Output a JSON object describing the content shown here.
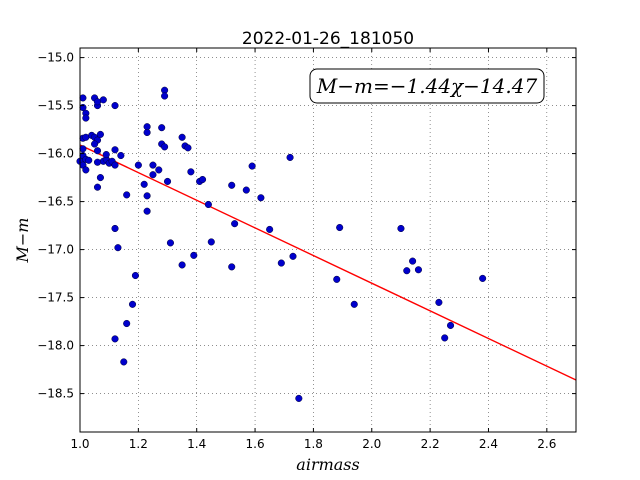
{
  "chart_data": {
    "type": "scatter",
    "title": "2022-01-26_181050",
    "xlabel": "airmass",
    "ylabel": "M−m",
    "xlim": [
      1.0,
      2.7
    ],
    "ylim": [
      -18.9,
      -14.9
    ],
    "xticks": [
      "1.0",
      "1.2",
      "1.4",
      "1.6",
      "1.8",
      "2.0",
      "2.2",
      "2.4",
      "2.6"
    ],
    "yticks": [
      "−15.0",
      "−15.5",
      "−16.0",
      "−16.5",
      "−17.0",
      "−17.5",
      "−18.0",
      "−18.5"
    ],
    "grid": true,
    "annotation": "M−m=−1.44χ−14.47",
    "fit": {
      "slope": -1.44,
      "intercept": -14.47,
      "color": "#ff0000"
    },
    "point_color": "#0000cc",
    "points": [
      [
        1.01,
        -15.42
      ],
      [
        1.01,
        -15.52
      ],
      [
        1.02,
        -15.58
      ],
      [
        1.02,
        -15.63
      ],
      [
        1.01,
        -15.84
      ],
      [
        1.02,
        -15.83
      ],
      [
        1.01,
        -15.95
      ],
      [
        1.01,
        -16.02
      ],
      [
        1.0,
        -16.08
      ],
      [
        1.01,
        -16.12
      ],
      [
        1.02,
        -16.17
      ],
      [
        1.02,
        -16.06
      ],
      [
        1.03,
        -16.07
      ],
      [
        1.04,
        -15.81
      ],
      [
        1.05,
        -15.42
      ],
      [
        1.06,
        -15.5
      ],
      [
        1.06,
        -15.46
      ],
      [
        1.08,
        -15.44
      ],
      [
        1.05,
        -15.83
      ],
      [
        1.06,
        -15.86
      ],
      [
        1.07,
        -15.8
      ],
      [
        1.05,
        -15.9
      ],
      [
        1.06,
        -15.97
      ],
      [
        1.08,
        -16.08
      ],
      [
        1.09,
        -16.06
      ],
      [
        1.09,
        -16.01
      ],
      [
        1.1,
        -16.1
      ],
      [
        1.11,
        -16.08
      ],
      [
        1.12,
        -16.12
      ],
      [
        1.12,
        -15.96
      ],
      [
        1.14,
        -16.02
      ],
      [
        1.12,
        -15.5
      ],
      [
        1.07,
        -16.25
      ],
      [
        1.06,
        -16.35
      ],
      [
        1.06,
        -16.09
      ],
      [
        1.16,
        -16.43
      ],
      [
        1.12,
        -16.78
      ],
      [
        1.13,
        -16.98
      ],
      [
        1.19,
        -17.27
      ],
      [
        1.18,
        -17.57
      ],
      [
        1.16,
        -17.77
      ],
      [
        1.12,
        -17.93
      ],
      [
        1.15,
        -18.17
      ],
      [
        1.2,
        -16.12
      ],
      [
        1.22,
        -16.32
      ],
      [
        1.23,
        -16.44
      ],
      [
        1.23,
        -16.6
      ],
      [
        1.23,
        -15.72
      ],
      [
        1.23,
        -15.78
      ],
      [
        1.25,
        -16.12
      ],
      [
        1.25,
        -16.22
      ],
      [
        1.27,
        -16.17
      ],
      [
        1.28,
        -15.73
      ],
      [
        1.28,
        -15.9
      ],
      [
        1.29,
        -15.93
      ],
      [
        1.3,
        -16.29
      ],
      [
        1.29,
        -15.34
      ],
      [
        1.29,
        -15.4
      ],
      [
        1.31,
        -16.93
      ],
      [
        1.35,
        -15.83
      ],
      [
        1.36,
        -15.92
      ],
      [
        1.37,
        -15.94
      ],
      [
        1.38,
        -16.19
      ],
      [
        1.35,
        -17.16
      ],
      [
        1.39,
        -17.06
      ],
      [
        1.41,
        -16.29
      ],
      [
        1.42,
        -16.27
      ],
      [
        1.44,
        -16.53
      ],
      [
        1.45,
        -16.92
      ],
      [
        1.52,
        -16.33
      ],
      [
        1.53,
        -16.73
      ],
      [
        1.52,
        -17.18
      ],
      [
        1.57,
        -16.38
      ],
      [
        1.59,
        -16.13
      ],
      [
        1.62,
        -16.46
      ],
      [
        1.65,
        -16.79
      ],
      [
        1.69,
        -17.14
      ],
      [
        1.72,
        -16.04
      ],
      [
        1.73,
        -17.07
      ],
      [
        1.75,
        -18.55
      ],
      [
        1.88,
        -17.31
      ],
      [
        1.89,
        -16.77
      ],
      [
        1.94,
        -17.57
      ],
      [
        2.1,
        -16.78
      ],
      [
        2.12,
        -17.22
      ],
      [
        2.14,
        -17.12
      ],
      [
        2.16,
        -17.21
      ],
      [
        2.23,
        -17.55
      ],
      [
        2.25,
        -17.92
      ],
      [
        2.27,
        -17.79
      ],
      [
        2.38,
        -17.3
      ]
    ]
  }
}
